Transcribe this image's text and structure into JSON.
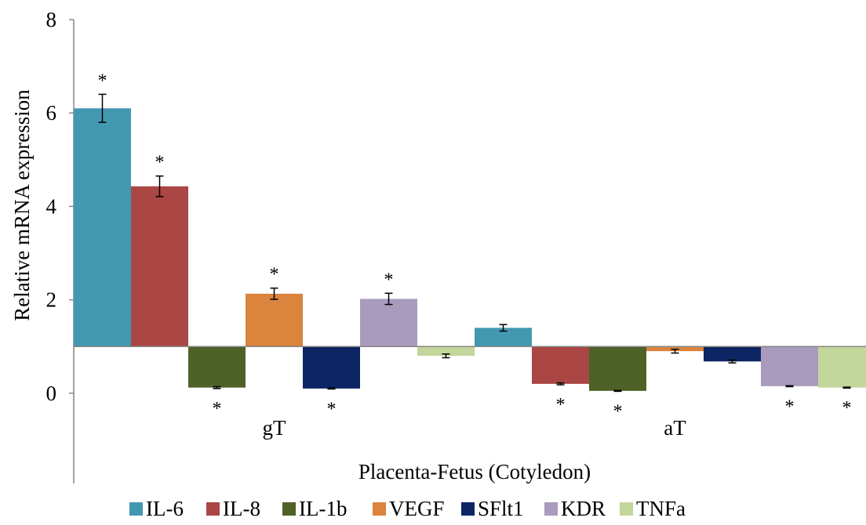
{
  "chart_data": {
    "type": "bar",
    "title": "",
    "xlabel": "Placenta-Fetus (Cotyledon)",
    "ylabel": "Relative mRNA expression",
    "ylim": [
      -2,
      8
    ],
    "yticks": [
      "0",
      "2",
      "4",
      "6",
      "8"
    ],
    "baseline": 1,
    "grid": false,
    "legend_position": "bottom",
    "categories": [
      "gT",
      "aT"
    ],
    "series": [
      {
        "name": "IL-6",
        "color": "#4398b1",
        "values": [
          6.1,
          1.4
        ],
        "errors": [
          0.3,
          0.07
        ],
        "significant": [
          true,
          false
        ]
      },
      {
        "name": "IL-8",
        "color": "#aa4643",
        "values": [
          4.43,
          0.2
        ],
        "errors": [
          0.22,
          0.02
        ],
        "significant": [
          true,
          true
        ]
      },
      {
        "name": "IL-1b",
        "color": "#4e6228",
        "values": [
          0.12,
          0.05
        ],
        "errors": [
          0.02,
          0.01
        ],
        "significant": [
          true,
          true
        ]
      },
      {
        "name": "VEGF",
        "color": "#db843d",
        "values": [
          2.13,
          0.9
        ],
        "errors": [
          0.12,
          0.04
        ],
        "significant": [
          true,
          false
        ]
      },
      {
        "name": "SFlt1",
        "color": "#0d2563",
        "values": [
          0.1,
          0.68
        ],
        "errors": [
          0.01,
          0.03
        ],
        "significant": [
          true,
          false
        ]
      },
      {
        "name": "KDR",
        "color": "#a99bbd",
        "values": [
          2.02,
          0.15
        ],
        "errors": [
          0.12,
          0.01
        ],
        "significant": [
          true,
          true
        ]
      },
      {
        "name": "TNFa",
        "color": "#c3d69b",
        "values": [
          0.8,
          0.12
        ],
        "errors": [
          0.04,
          0.01
        ],
        "significant": [
          false,
          true
        ]
      }
    ],
    "significance_marker": "*"
  }
}
